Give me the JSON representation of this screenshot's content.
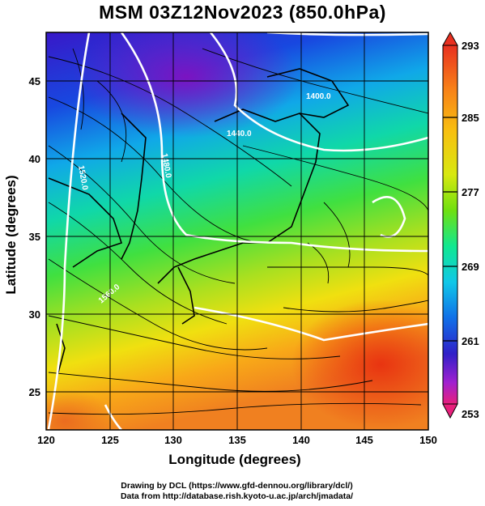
{
  "title": "MSM 03Z12Nov2023 (850.0hPa)",
  "map": {
    "x_axis": {
      "label": "Longitude (degrees)",
      "range": [
        120,
        150
      ],
      "ticks": [
        "120",
        "125",
        "130",
        "135",
        "140",
        "145",
        "150"
      ]
    },
    "y_axis": {
      "label": "Latitude  (degrees)",
      "range": [
        22.5,
        48
      ],
      "ticks": [
        "25",
        "30",
        "35",
        "40",
        "45"
      ]
    },
    "field": "temperature (shaded), geopotential height (white contours), wind streamlines (black)",
    "grid": "on",
    "colorbar": {
      "placement": "right",
      "min": 253,
      "max": 293,
      "labels": [
        "293",
        "285",
        "277",
        "269",
        "261",
        "253"
      ],
      "colors": [
        "#e8207c",
        "#a020d0",
        "#3020c8",
        "#1070e8",
        "#10c8e8",
        "#10e890",
        "#70e010",
        "#d8e810",
        "#f8c010",
        "#f88018",
        "#e83020"
      ]
    },
    "contour_labels": [
      "1400.0",
      "1440.0",
      "1480.0",
      "1520.0",
      "1560.0"
    ]
  },
  "credits": {
    "line1": "Drawing by DCL (https://www.gfd-dennou.org/library/dcl/)",
    "line2": "Data from http://database.rish.kyoto-u.ac.jp/arch/jmadata/"
  }
}
